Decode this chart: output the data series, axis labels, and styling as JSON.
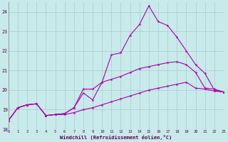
{
  "background_color": "#c8eaea",
  "grid_color": "#aacccc",
  "line_color": "#aa00aa",
  "xlim": [
    0,
    23
  ],
  "ylim": [
    18,
    24.5
  ],
  "yticks": [
    18,
    19,
    20,
    21,
    22,
    23,
    24
  ],
  "xticks": [
    0,
    1,
    2,
    3,
    4,
    5,
    6,
    7,
    8,
    9,
    10,
    11,
    12,
    13,
    14,
    15,
    16,
    17,
    18,
    19,
    20,
    21,
    22,
    23
  ],
  "xlabel": "Windchill (Refroidissement éolien,°C)",
  "series1": {
    "x": [
      0,
      1,
      2,
      3,
      4,
      5,
      6,
      7,
      8,
      9,
      10,
      11,
      12,
      13,
      14,
      15,
      16,
      17,
      18,
      19,
      20,
      21,
      22,
      23
    ],
    "y": [
      18.45,
      19.1,
      19.25,
      19.3,
      18.7,
      18.75,
      18.8,
      19.1,
      19.85,
      19.5,
      20.4,
      21.8,
      21.9,
      22.8,
      23.35,
      24.3,
      23.5,
      23.3,
      22.7,
      22.0,
      21.3,
      20.85,
      20.0,
      19.9
    ]
  },
  "series2": {
    "x": [
      0,
      1,
      2,
      3,
      4,
      5,
      6,
      7,
      8,
      9,
      10,
      11,
      12,
      13,
      14,
      15,
      16,
      17,
      18,
      19,
      20,
      21,
      22,
      23
    ],
    "y": [
      18.45,
      19.1,
      19.25,
      19.3,
      18.7,
      18.75,
      18.8,
      19.1,
      20.05,
      20.05,
      20.4,
      20.55,
      20.7,
      20.9,
      21.1,
      21.2,
      21.3,
      21.4,
      21.45,
      21.3,
      20.9,
      20.1,
      20.05,
      19.9
    ]
  },
  "series3": {
    "x": [
      0,
      1,
      2,
      3,
      4,
      5,
      6,
      7,
      8,
      9,
      10,
      11,
      12,
      13,
      14,
      15,
      16,
      17,
      18,
      19,
      20,
      21,
      22,
      23
    ],
    "y": [
      18.45,
      19.1,
      19.25,
      19.3,
      18.7,
      18.75,
      18.75,
      18.85,
      19.0,
      19.1,
      19.25,
      19.4,
      19.55,
      19.7,
      19.85,
      20.0,
      20.1,
      20.2,
      20.3,
      20.4,
      20.1,
      20.05,
      19.95,
      19.9
    ]
  }
}
